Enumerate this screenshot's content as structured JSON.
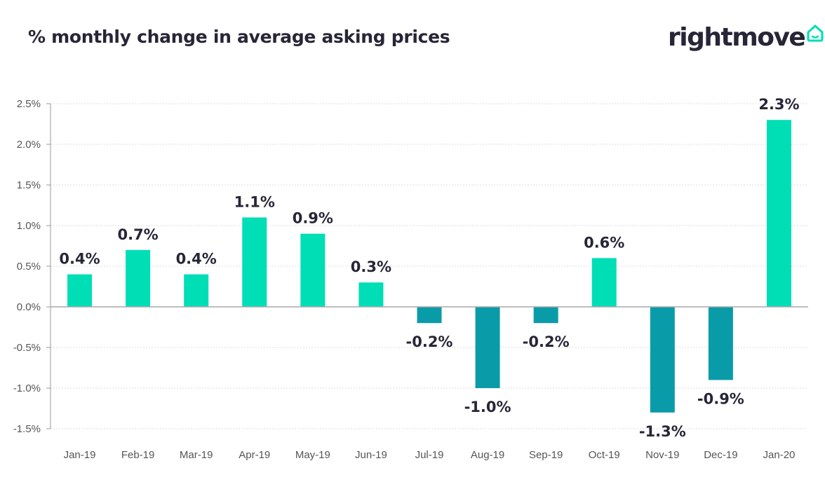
{
  "header": {
    "title": "% monthly change in average asking prices",
    "logo_text": "rightmove",
    "logo_icon": "house-outline-icon"
  },
  "colors": {
    "positive": "#00deb6",
    "negative": "#0a9ba8",
    "text": "#262637",
    "grid": "#dddddd"
  },
  "chart_data": {
    "type": "bar",
    "title": "% monthly change in average asking prices",
    "xlabel": "",
    "ylabel": "",
    "categories": [
      "Jan-19",
      "Feb-19",
      "Mar-19",
      "Apr-19",
      "May-19",
      "Jun-19",
      "Jul-19",
      "Aug-19",
      "Sep-19",
      "Oct-19",
      "Nov-19",
      "Dec-19",
      "Jan-20"
    ],
    "values": [
      0.4,
      0.7,
      0.4,
      1.1,
      0.9,
      0.3,
      -0.2,
      -1.0,
      -0.2,
      0.6,
      -1.3,
      -0.9,
      2.3
    ],
    "data_labels": [
      "0.4%",
      "0.7%",
      "0.4%",
      "1.1%",
      "0.9%",
      "0.3%",
      "-0.2%",
      "-1.0%",
      "-0.2%",
      "0.6%",
      "-1.3%",
      "-0.9%",
      "2.3%"
    ],
    "ylim": [
      -1.5,
      2.5
    ],
    "yticks": [
      2.5,
      2.0,
      1.5,
      1.0,
      0.5,
      0.0,
      -0.5,
      -1.0,
      -1.5
    ],
    "ytick_labels": [
      "2.5%",
      "2.0%",
      "1.5%",
      "1.0%",
      "0.5%",
      "0.0%",
      "-0.5%",
      "-1.0%",
      "-1.5%"
    ],
    "grid": true,
    "legend": "none"
  }
}
